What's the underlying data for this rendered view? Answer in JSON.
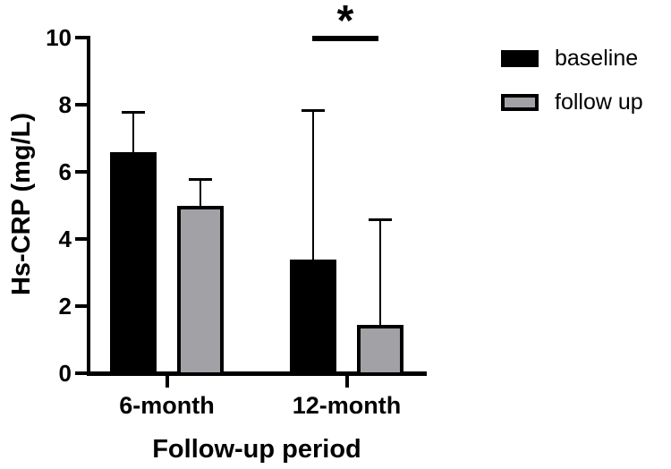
{
  "axes": {
    "y_title": "Hs-CRP (mg/L)",
    "x_title": "Follow-up period"
  },
  "legend": {
    "items": [
      {
        "label": "baseline",
        "color": "#000000"
      },
      {
        "label": "follow up",
        "color": "#a2a2a6"
      }
    ]
  },
  "significance": {
    "symbol": "*"
  },
  "colors": {
    "axis": "#000000",
    "background": "#ffffff",
    "bar_baseline": "#000000",
    "bar_followup_fill": "#a2a2a6",
    "bar_followup_border": "#000000"
  },
  "chart_data": {
    "type": "bar",
    "title": "",
    "xlabel": "Follow-up period",
    "ylabel": "Hs-CRP (mg/L)",
    "categories": [
      "6-month",
      "12-month"
    ],
    "series": [
      {
        "name": "baseline",
        "color": "#000000",
        "values": [
          6.6,
          3.4
        ],
        "error_top": [
          7.8,
          7.85
        ]
      },
      {
        "name": "follow up",
        "color": "#a2a2a6",
        "values": [
          5.0,
          1.45
        ],
        "error_top": [
          5.8,
          4.6
        ]
      }
    ],
    "ylim": [
      0,
      10
    ],
    "yticks": [
      0,
      2,
      4,
      6,
      8,
      10
    ],
    "grid": false,
    "error_bars": "upper only",
    "legend_position": "outside-upper-right",
    "annotations": [
      {
        "type": "significance",
        "symbol": "*",
        "group": "12-month",
        "spans": [
          "baseline",
          "follow up"
        ]
      }
    ]
  }
}
